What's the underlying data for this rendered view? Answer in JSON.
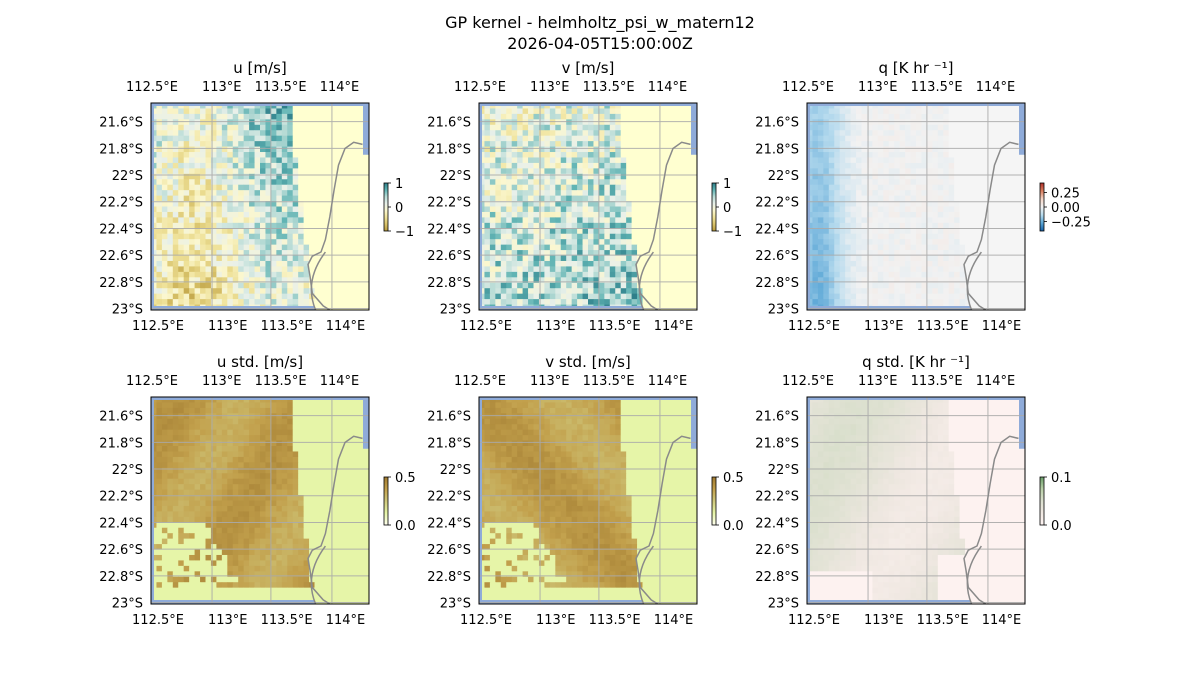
{
  "figure": {
    "title": "GP kernel - helmholtz_psi_w_matern12",
    "subtitle": "2026-04-05T15:00:00Z"
  },
  "colors": {
    "ocean": "#8fabd9",
    "coastline": "#8a8a8a",
    "grid": "#aaaaaa",
    "land_u": "#ffffd0",
    "land_std": "#e6f5a8",
    "land_q": "#f5f5f5",
    "land_qstd": "#fdf2f0"
  },
  "chart_data": [
    {
      "type": "heatmap",
      "panel": "u",
      "title": "u [m/s]",
      "x_ticks": [
        "112.5°E",
        "113°E",
        "113.5°E",
        "114°E"
      ],
      "y_ticks": [
        "21.6°S",
        "21.8°S",
        "22°S",
        "22.2°S",
        "22.4°S",
        "22.6°S",
        "22.8°S",
        "23°S"
      ],
      "xlim": [
        112.5,
        114.3
      ],
      "ylim": [
        -23.0,
        -21.45
      ],
      "colorbar": {
        "ticks": [
          "1",
          "0",
          "−1"
        ],
        "range": [
          -1,
          1
        ],
        "colormap": "diverging brown-teal"
      },
      "grid": true
    },
    {
      "type": "heatmap",
      "panel": "v",
      "title": "v [m/s]",
      "x_ticks": [
        "112.5°E",
        "113°E",
        "113.5°E",
        "114°E"
      ],
      "y_ticks": [
        "21.6°S",
        "21.8°S",
        "22°S",
        "22.2°S",
        "22.4°S",
        "22.6°S",
        "22.8°S",
        "23°S"
      ],
      "xlim": [
        112.5,
        114.3
      ],
      "ylim": [
        -23.0,
        -21.45
      ],
      "colorbar": {
        "ticks": [
          "1",
          "0",
          "−1"
        ],
        "range": [
          -1,
          1
        ],
        "colormap": "diverging brown-teal"
      },
      "grid": true
    },
    {
      "type": "heatmap",
      "panel": "q",
      "title": "q [K hr ⁻¹]",
      "x_ticks": [
        "112.5°E",
        "113°E",
        "113.5°E",
        "114°E"
      ],
      "y_ticks": [
        "21.6°S",
        "21.8°S",
        "22°S",
        "22.2°S",
        "22.4°S",
        "22.6°S",
        "22.8°S",
        "23°S"
      ],
      "xlim": [
        112.5,
        114.3
      ],
      "ylim": [
        -23.0,
        -21.45
      ],
      "colorbar": {
        "ticks": [
          "0.25",
          "0.00",
          "−0.25"
        ],
        "range": [
          -0.3,
          0.3
        ],
        "colormap": "diverging red-blue"
      },
      "grid": true
    },
    {
      "type": "heatmap",
      "panel": "u_std",
      "title": "u std. [m/s]",
      "x_ticks": [
        "112.5°E",
        "113°E",
        "113.5°E",
        "114°E"
      ],
      "y_ticks": [
        "21.6°S",
        "21.8°S",
        "22°S",
        "22.2°S",
        "22.4°S",
        "22.6°S",
        "22.8°S",
        "23°S"
      ],
      "xlim": [
        112.5,
        114.3
      ],
      "ylim": [
        -23.0,
        -21.45
      ],
      "colorbar": {
        "ticks": [
          "0.5",
          "0.0"
        ],
        "range": [
          0,
          0.5
        ],
        "colormap": "sequential yellow-brown"
      },
      "grid": true
    },
    {
      "type": "heatmap",
      "panel": "v_std",
      "title": "v std. [m/s]",
      "x_ticks": [
        "112.5°E",
        "113°E",
        "113.5°E",
        "114°E"
      ],
      "y_ticks": [
        "21.6°S",
        "21.8°S",
        "22°S",
        "22.2°S",
        "22.4°S",
        "22.6°S",
        "22.8°S",
        "23°S"
      ],
      "xlim": [
        112.5,
        114.3
      ],
      "ylim": [
        -23.0,
        -21.45
      ],
      "colorbar": {
        "ticks": [
          "0.5",
          "0.0"
        ],
        "range": [
          0,
          0.5
        ],
        "colormap": "sequential yellow-brown"
      },
      "grid": true
    },
    {
      "type": "heatmap",
      "panel": "q_std",
      "title": "q std. [K hr ⁻¹]",
      "x_ticks": [
        "112.5°E",
        "113°E",
        "113.5°E",
        "114°E"
      ],
      "y_ticks": [
        "21.6°S",
        "21.8°S",
        "22°S",
        "22.2°S",
        "22.4°S",
        "22.6°S",
        "22.8°S",
        "23°S"
      ],
      "xlim": [
        112.5,
        114.3
      ],
      "ylim": [
        -23.0,
        -21.45
      ],
      "colorbar": {
        "ticks": [
          "0.1",
          "0.0"
        ],
        "range": [
          0,
          0.12
        ],
        "colormap": "sequential pink-green"
      },
      "grid": true
    }
  ]
}
